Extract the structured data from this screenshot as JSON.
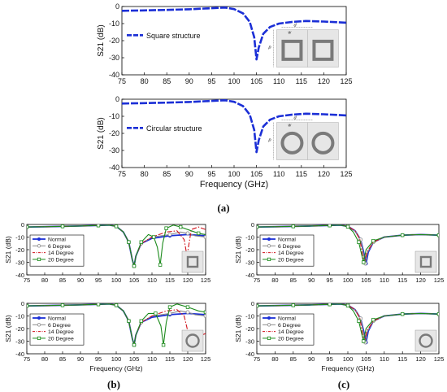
{
  "captions": {
    "a": "(a)",
    "b": "(b)",
    "c": "(c)"
  },
  "colors": {
    "normal": "#1b2fd6",
    "deg6": "#8a8a8a",
    "deg14": "#d0121b",
    "deg20": "#1b8a1b",
    "inset_bg": "#e6e6e6",
    "ring": "#7a7a7a"
  },
  "chart_data": [
    {
      "id": "a-top",
      "type": "line",
      "ylabel": "S21 (dB)",
      "xlabel": "",
      "xlim": [
        75,
        125
      ],
      "ylim": [
        -40,
        0
      ],
      "xticks": [
        75,
        80,
        85,
        90,
        95,
        100,
        105,
        110,
        115,
        120,
        125
      ],
      "yticks": [
        0,
        -10,
        -20,
        -30,
        -40
      ],
      "series": [
        {
          "name": "Square structure",
          "x": [
            75,
            80,
            85,
            90,
            95,
            98,
            100,
            102,
            103.5,
            104.5,
            105,
            105.5,
            106.5,
            108,
            110,
            113,
            116,
            120,
            125
          ],
          "y": [
            -2.5,
            -2.3,
            -2,
            -1.6,
            -1,
            -0.6,
            -1.5,
            -4,
            -9,
            -18,
            -31,
            -24,
            -16,
            -12,
            -10,
            -9,
            -8.5,
            -8.8,
            -9.5
          ]
        }
      ],
      "inset": {
        "shape": "square",
        "labels": [
          "d",
          "w",
          "p"
        ]
      }
    },
    {
      "id": "a-bottom",
      "type": "line",
      "ylabel": "S21 (dB)",
      "xlabel": "Frequency (GHz)",
      "xlim": [
        75,
        125
      ],
      "ylim": [
        -40,
        0
      ],
      "xticks": [
        75,
        80,
        85,
        90,
        95,
        100,
        105,
        110,
        115,
        120,
        125
      ],
      "yticks": [
        0,
        -10,
        -20,
        -30,
        -40
      ],
      "series": [
        {
          "name": "Circular structure",
          "x": [
            75,
            80,
            85,
            90,
            95,
            98,
            100,
            102,
            103.5,
            104.5,
            105,
            105.5,
            106.5,
            108,
            110,
            113,
            116,
            120,
            125
          ],
          "y": [
            -2.5,
            -2.3,
            -2,
            -1.6,
            -1,
            -0.6,
            -1.5,
            -4,
            -9,
            -18,
            -31,
            -24,
            -16,
            -12,
            -10,
            -9,
            -8.5,
            -8.8,
            -9.5
          ]
        }
      ],
      "inset": {
        "shape": "circle",
        "labels": [
          "d",
          "w",
          "p"
        ]
      }
    },
    {
      "id": "b-top",
      "type": "line",
      "ylabel": "S21 (dB)",
      "xlabel": "",
      "xlim": [
        75,
        125
      ],
      "ylim": [
        -40,
        0
      ],
      "xticks": [
        75,
        80,
        85,
        90,
        95,
        100,
        105,
        110,
        115,
        120,
        125
      ],
      "yticks": [
        0,
        -10,
        -20,
        -30,
        -40
      ],
      "series": [
        {
          "name": "Normal",
          "x": [
            75,
            80,
            85,
            90,
            95,
            98,
            100,
            102,
            103.5,
            104.5,
            105,
            105.5,
            107,
            110,
            115,
            120,
            125
          ],
          "y": [
            -2,
            -1.8,
            -1.5,
            -1.2,
            -0.8,
            -0.5,
            -1.5,
            -6,
            -14,
            -28,
            -33,
            -25,
            -15,
            -11,
            -9,
            -8,
            -9
          ]
        },
        {
          "name": "6 Degree",
          "x": [
            75,
            80,
            85,
            90,
            95,
            98,
            100,
            102,
            103.5,
            104.5,
            105,
            105.5,
            107,
            110,
            115,
            118,
            120,
            122,
            125
          ],
          "y": [
            -2,
            -1.8,
            -1.5,
            -1.2,
            -0.8,
            -0.5,
            -1.5,
            -6,
            -14,
            -28,
            -33,
            -25,
            -15,
            -10,
            -8,
            -6,
            -7,
            -9,
            -10
          ]
        },
        {
          "name": "14 Degree",
          "x": [
            75,
            80,
            85,
            90,
            95,
            98,
            100,
            102,
            103.5,
            104.5,
            105,
            105.5,
            107,
            110,
            114,
            117,
            119,
            119.8,
            121,
            123,
            125
          ],
          "y": [
            -2,
            -1.8,
            -1.5,
            -1.2,
            -0.8,
            -0.5,
            -1.5,
            -6,
            -14,
            -28,
            -33,
            -25,
            -15,
            -10,
            -6,
            -5,
            -12,
            -25,
            -4,
            -2,
            -4
          ]
        },
        {
          "name": "20 Degree",
          "x": [
            75,
            80,
            85,
            90,
            95,
            98,
            100,
            102,
            103.5,
            104.5,
            105,
            105.5,
            107,
            109,
            110.5,
            111.5,
            112.3,
            113,
            114,
            116,
            118,
            121,
            123,
            125
          ],
          "y": [
            -2,
            -1.8,
            -1.5,
            -1.2,
            -0.8,
            -0.5,
            -1.5,
            -6,
            -14,
            -28,
            -33,
            -25,
            -14,
            -8,
            -10,
            -18,
            -32,
            -15,
            -3,
            -0.5,
            -2,
            -5,
            -7,
            -8
          ]
        }
      ],
      "inset": {
        "shape": "square"
      }
    },
    {
      "id": "b-bottom",
      "type": "line",
      "ylabel": "S21 (dB)",
      "xlabel": "Frequency (GHz)",
      "xlim": [
        75,
        125
      ],
      "ylim": [
        -40,
        0
      ],
      "xticks": [
        75,
        80,
        85,
        90,
        95,
        100,
        105,
        110,
        115,
        120,
        125
      ],
      "yticks": [
        0,
        -10,
        -20,
        -30,
        -40
      ],
      "series": [
        {
          "name": "Normal",
          "x": [
            75,
            80,
            85,
            90,
            95,
            98,
            100,
            102,
            103.5,
            104.5,
            105,
            105.5,
            107,
            110,
            115,
            120,
            125
          ],
          "y": [
            -2,
            -1.8,
            -1.5,
            -1.2,
            -0.8,
            -0.5,
            -1.5,
            -6,
            -14,
            -28,
            -33,
            -25,
            -15,
            -11,
            -9,
            -8,
            -9
          ]
        },
        {
          "name": "6 Degree",
          "x": [
            75,
            80,
            85,
            90,
            95,
            98,
            100,
            102,
            103.5,
            104.5,
            105,
            105.5,
            107,
            110,
            115,
            118,
            120,
            122,
            125
          ],
          "y": [
            -2,
            -1.8,
            -1.5,
            -1.2,
            -0.8,
            -0.5,
            -1.5,
            -6,
            -14,
            -28,
            -33,
            -25,
            -15,
            -10,
            -8,
            -6,
            -7,
            -9,
            -10
          ]
        },
        {
          "name": "14 Degree",
          "x": [
            75,
            80,
            85,
            90,
            95,
            98,
            100,
            102,
            103.5,
            104.5,
            105,
            105.5,
            107,
            110,
            114,
            117,
            119,
            120,
            120.8,
            122,
            124,
            125
          ],
          "y": [
            -2,
            -1.8,
            -1.5,
            -1.2,
            -0.8,
            -0.5,
            -1.5,
            -6,
            -14,
            -28,
            -33,
            -25,
            -15,
            -10,
            -6,
            -5,
            -10,
            -22,
            -34,
            -30,
            -25,
            -24
          ]
        },
        {
          "name": "20 Degree",
          "x": [
            75,
            80,
            85,
            90,
            95,
            98,
            100,
            102,
            103.5,
            104.5,
            105,
            105.5,
            107,
            109,
            111,
            112.5,
            113.2,
            114,
            115,
            117,
            120,
            123,
            125
          ],
          "y": [
            -2,
            -1.8,
            -1.5,
            -1.2,
            -0.8,
            -0.5,
            -1.5,
            -6,
            -14,
            -28,
            -33,
            -25,
            -14,
            -8,
            -8,
            -18,
            -33,
            -15,
            -3,
            -0.5,
            -3,
            -6,
            -7
          ]
        }
      ],
      "inset": {
        "shape": "circle"
      }
    },
    {
      "id": "c-top",
      "type": "line",
      "ylabel": "S21 (dB)",
      "xlabel": "",
      "xlim": [
        75,
        125
      ],
      "ylim": [
        -40,
        0
      ],
      "xticks": [
        75,
        80,
        85,
        90,
        95,
        100,
        105,
        110,
        115,
        120,
        125
      ],
      "yticks": [
        0,
        -10,
        -20,
        -30,
        -40
      ],
      "series": [
        {
          "name": "Normal",
          "x": [
            75,
            80,
            85,
            90,
            95,
            98,
            100,
            102,
            103.5,
            104.5,
            105,
            105.6,
            107,
            110,
            115,
            120,
            125
          ],
          "y": [
            -2,
            -1.8,
            -1.5,
            -1.2,
            -0.8,
            -0.5,
            -1.5,
            -5,
            -12,
            -24,
            -31,
            -22,
            -14,
            -10,
            -8.5,
            -8,
            -8.5
          ]
        },
        {
          "name": "6 Degree",
          "x": [
            75,
            80,
            85,
            90,
            95,
            98,
            100,
            102,
            103.5,
            104.3,
            104.8,
            105.4,
            107,
            110,
            115,
            120,
            125
          ],
          "y": [
            -2,
            -1.8,
            -1.5,
            -1.2,
            -0.8,
            -0.5,
            -1.5,
            -5,
            -12,
            -24,
            -31,
            -22,
            -14,
            -10,
            -8.5,
            -8,
            -8.5
          ]
        },
        {
          "name": "14 Degree",
          "x": [
            75,
            80,
            85,
            90,
            95,
            98,
            100,
            102,
            103.3,
            104,
            104.6,
            105.2,
            107,
            110,
            115,
            120,
            125
          ],
          "y": [
            -2,
            -1.8,
            -1.5,
            -1.2,
            -0.8,
            -0.5,
            -1.5,
            -5,
            -12,
            -24,
            -31,
            -22,
            -14,
            -10,
            -8.5,
            -8,
            -8.5
          ]
        },
        {
          "name": "20 Degree",
          "x": [
            75,
            80,
            85,
            90,
            95,
            98,
            100,
            101.5,
            103,
            103.8,
            104.3,
            105,
            107,
            110,
            115,
            120,
            125
          ],
          "y": [
            -2,
            -1.8,
            -1.5,
            -1.2,
            -0.8,
            -0.5,
            -1.8,
            -6,
            -14,
            -24,
            -30,
            -20,
            -13,
            -10,
            -8.5,
            -8,
            -8.5
          ]
        }
      ],
      "inset": {
        "shape": "square"
      }
    },
    {
      "id": "c-bottom",
      "type": "line",
      "ylabel": "S21 (dB)",
      "xlabel": "Frequency (GHz)",
      "xlim": [
        75,
        125
      ],
      "ylim": [
        -40,
        0
      ],
      "xticks": [
        75,
        80,
        85,
        90,
        95,
        100,
        105,
        110,
        115,
        120,
        125
      ],
      "yticks": [
        0,
        -10,
        -20,
        -30,
        -40
      ],
      "series": [
        {
          "name": "Normal",
          "x": [
            75,
            80,
            85,
            90,
            95,
            98,
            100,
            102,
            103.5,
            104.5,
            105,
            105.6,
            107,
            110,
            115,
            120,
            125
          ],
          "y": [
            -2,
            -1.8,
            -1.5,
            -1.2,
            -0.8,
            -0.5,
            -1.5,
            -5,
            -12,
            -24,
            -31,
            -22,
            -14,
            -10,
            -8.5,
            -8,
            -8.5
          ]
        },
        {
          "name": "6 Degree",
          "x": [
            75,
            80,
            85,
            90,
            95,
            98,
            100,
            102,
            103.5,
            104.3,
            104.8,
            105.4,
            107,
            110,
            115,
            120,
            125
          ],
          "y": [
            -2,
            -1.8,
            -1.5,
            -1.2,
            -0.8,
            -0.5,
            -1.5,
            -5,
            -12,
            -24,
            -31,
            -22,
            -14,
            -10,
            -8.5,
            -8,
            -8.5
          ]
        },
        {
          "name": "14 Degree",
          "x": [
            75,
            80,
            85,
            90,
            95,
            98,
            100,
            102,
            103.3,
            104,
            104.6,
            105.2,
            107,
            110,
            115,
            120,
            125
          ],
          "y": [
            -2,
            -1.8,
            -1.5,
            -1.2,
            -0.8,
            -0.5,
            -1.5,
            -5,
            -12,
            -24,
            -31,
            -22,
            -14,
            -10,
            -8.5,
            -8,
            -8.5
          ]
        },
        {
          "name": "20 Degree",
          "x": [
            75,
            80,
            85,
            90,
            95,
            98,
            100,
            101.5,
            103,
            103.8,
            104.3,
            105,
            107,
            110,
            115,
            120,
            125
          ],
          "y": [
            -2,
            -1.8,
            -1.5,
            -1.2,
            -0.8,
            -0.5,
            -1.8,
            -6,
            -14,
            -24,
            -30,
            -20,
            -13,
            -10,
            -8.5,
            -8,
            -8.5
          ]
        }
      ],
      "inset": {
        "shape": "circle"
      }
    }
  ]
}
